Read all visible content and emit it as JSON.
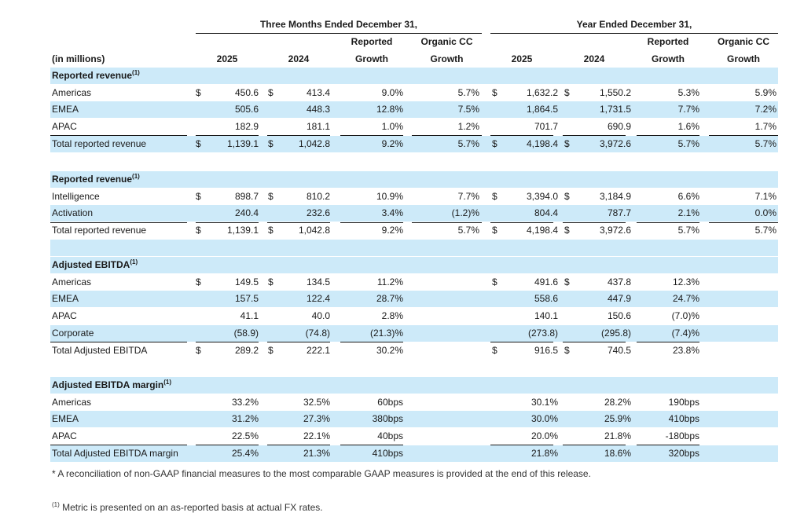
{
  "header": {
    "period_q": "Three Months Ended December 31,",
    "period_y": "Year Ended December 31,",
    "units_label": "(in millions)",
    "col_2025": "2025",
    "col_2024": "2024",
    "reported_1": "Reported",
    "reported_2": "Growth",
    "organic_1": "Organic CC",
    "organic_2": "Growth"
  },
  "sections": [
    {
      "title": "Reported revenue",
      "sup": "(1)",
      "dollar_rows": [
        0,
        3
      ],
      "rows": [
        {
          "label": "Americas",
          "q25": "450.6",
          "q24": "413.4",
          "qrg": "9.0%",
          "qoc": "5.7%",
          "y25": "1,632.2",
          "y24": "1,550.2",
          "yrg": "5.3%",
          "yoc": "5.9%"
        },
        {
          "label": "EMEA",
          "q25": "505.6",
          "q24": "448.3",
          "qrg": "12.8%",
          "qoc": "7.5%",
          "y25": "1,864.5",
          "y24": "1,731.5",
          "yrg": "7.7%",
          "yoc": "7.2%"
        },
        {
          "label": "APAC",
          "q25": "182.9",
          "q24": "181.1",
          "qrg": "1.0%",
          "qoc": "1.2%",
          "y25": "701.7",
          "y24": "690.9",
          "yrg": "1.6%",
          "yoc": "1.7%"
        },
        {
          "label": "Total reported revenue",
          "q25": "1,139.1",
          "q24": "1,042.8",
          "qrg": "9.2%",
          "qoc": "5.7%",
          "y25": "4,198.4",
          "y24": "3,972.6",
          "yrg": "5.7%",
          "yoc": "5.7%"
        }
      ]
    },
    {
      "title": "Reported revenue",
      "sup": "(1)",
      "dollar_rows": [
        0,
        2
      ],
      "rows": [
        {
          "label": "Intelligence",
          "q25": "898.7",
          "q24": "810.2",
          "qrg": "10.9%",
          "qoc": "7.7%",
          "y25": "3,394.0",
          "y24": "3,184.9",
          "yrg": "6.6%",
          "yoc": "7.1%"
        },
        {
          "label": "Activation",
          "q25": "240.4",
          "q24": "232.6",
          "qrg": "3.4%",
          "qoc": "(1.2)%",
          "y25": "804.4",
          "y24": "787.7",
          "yrg": "2.1%",
          "yoc": "0.0%"
        },
        {
          "label": "Total reported revenue",
          "q25": "1,139.1",
          "q24": "1,042.8",
          "qrg": "9.2%",
          "qoc": "5.7%",
          "y25": "4,198.4",
          "y24": "3,972.6",
          "yrg": "5.7%",
          "yoc": "5.7%"
        }
      ]
    },
    {
      "title": "Adjusted EBITDA",
      "sup": "(1)",
      "dollar_rows": [
        0,
        4
      ],
      "rows": [
        {
          "label": "Americas",
          "q25": "149.5",
          "q24": "134.5",
          "qrg": "11.2%",
          "qoc": "",
          "y25": "491.6",
          "y24": "437.8",
          "yrg": "12.3%",
          "yoc": ""
        },
        {
          "label": "EMEA",
          "q25": "157.5",
          "q24": "122.4",
          "qrg": "28.7%",
          "qoc": "",
          "y25": "558.6",
          "y24": "447.9",
          "yrg": "24.7%",
          "yoc": ""
        },
        {
          "label": "APAC",
          "q25": "41.1",
          "q24": "40.0",
          "qrg": "2.8%",
          "qoc": "",
          "y25": "140.1",
          "y24": "150.6",
          "yrg": "(7.0)%",
          "yoc": ""
        },
        {
          "label": "Corporate",
          "q25": "(58.9)",
          "q24": "(74.8)",
          "qrg": "(21.3)%",
          "qoc": "",
          "y25": "(273.8)",
          "y24": "(295.8)",
          "yrg": "(7.4)%",
          "yoc": ""
        },
        {
          "label": "Total Adjusted EBITDA",
          "q25": "289.2",
          "q24": "222.1",
          "qrg": "30.2%",
          "qoc": "",
          "y25": "916.5",
          "y24": "740.5",
          "yrg": "23.8%",
          "yoc": ""
        }
      ]
    },
    {
      "title": "Adjusted EBITDA margin",
      "sup": "(1)",
      "dollar_rows": [],
      "rows": [
        {
          "label": "Americas",
          "q25": "33.2%",
          "q24": "32.5%",
          "qrg": "60bps",
          "qoc": "",
          "y25": "30.1%",
          "y24": "28.2%",
          "yrg": "190bps",
          "yoc": ""
        },
        {
          "label": "EMEA",
          "q25": "31.2%",
          "q24": "27.3%",
          "qrg": "380bps",
          "qoc": "",
          "y25": "30.0%",
          "y24": "25.9%",
          "yrg": "410bps",
          "yoc": ""
        },
        {
          "label": "APAC",
          "q25": "22.5%",
          "q24": "22.1%",
          "qrg": "40bps",
          "qoc": "",
          "y25": "20.0%",
          "y24": "21.8%",
          "yrg": "-180bps",
          "yoc": ""
        },
        {
          "label": "Total Adjusted EBITDA margin",
          "q25": "25.4%",
          "q24": "21.3%",
          "qrg": "410bps",
          "qoc": "",
          "y25": "21.8%",
          "y24": "18.6%",
          "yrg": "320bps",
          "yoc": ""
        }
      ]
    }
  ],
  "dollar_sign": "$",
  "footnote_reconciliation": "* A reconciliation of non-GAAP financial measures to the most comparable GAAP measures is provided at the end of this release.",
  "footnote_metric_sup": "(1)",
  "footnote_metric": " Metric is presented on an as-reported basis at actual FX rates.",
  "colors": {
    "band": "#cdeaf9",
    "text": "#1a1a1a"
  }
}
